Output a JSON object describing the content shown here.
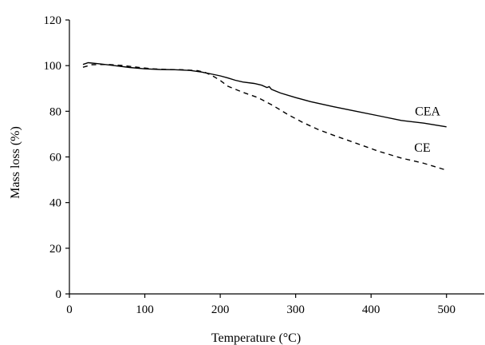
{
  "chart_data": {
    "type": "line",
    "xlabel": "Temperature (°C)",
    "ylabel": "Mass loss (%)",
    "xlim": [
      0,
      550
    ],
    "ylim": [
      0,
      120
    ],
    "xticks": [
      0,
      100,
      200,
      300,
      400,
      500
    ],
    "yticks": [
      0,
      20,
      40,
      60,
      80,
      100,
      120
    ],
    "grid": false,
    "series": [
      {
        "name": "CEA",
        "style": "solid",
        "x": [
          18,
          25,
          40,
          60,
          80,
          100,
          120,
          140,
          160,
          175,
          190,
          200,
          210,
          220,
          230,
          245,
          255,
          262,
          265,
          268,
          280,
          300,
          320,
          350,
          380,
          410,
          440,
          470,
          500
        ],
        "y": [
          100.5,
          101.3,
          100.8,
          100,
          99.2,
          98.6,
          98.3,
          98.2,
          97.9,
          97.2,
          96.2,
          95.5,
          94.6,
          93.6,
          92.8,
          92.2,
          91.4,
          90.4,
          90.8,
          89.6,
          88,
          86,
          84.2,
          82,
          80,
          78,
          76,
          74.8,
          73.2
        ]
      },
      {
        "name": "CE",
        "style": "dashed",
        "x": [
          18,
          30,
          50,
          70,
          90,
          110,
          130,
          150,
          170,
          180,
          190,
          200,
          210,
          230,
          250,
          270,
          290,
          310,
          330,
          350,
          380,
          410,
          440,
          470,
          500
        ],
        "y": [
          99.3,
          100.4,
          100.5,
          100.1,
          99.3,
          98.6,
          98.3,
          98.2,
          97.8,
          97.0,
          95.5,
          93.5,
          91,
          88.3,
          86,
          82.5,
          78.5,
          75,
          72,
          69.5,
          66,
          62.5,
          59.5,
          57.2,
          54.2
        ]
      }
    ]
  }
}
